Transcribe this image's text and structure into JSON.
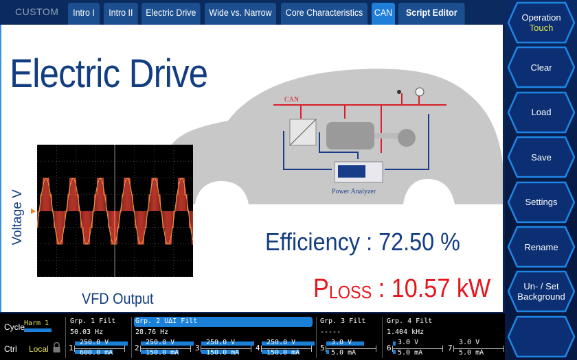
{
  "topbar": {
    "custom_label": "CUSTOM",
    "tabs": [
      {
        "label": "Intro I"
      },
      {
        "label": "Intro II"
      },
      {
        "label": "Electric Drive"
      },
      {
        "label": "Wide vs. Narrow"
      },
      {
        "label": "Core Characteristics"
      },
      {
        "label": "CAN",
        "active": true
      },
      {
        "label": "Script Editor"
      }
    ]
  },
  "main": {
    "title": "Electric Drive",
    "scope_ylabel": "Voltage V",
    "scope_caption": "VFD Output",
    "diagram": {
      "bus_label": "CAN",
      "analyzer_label": "Power Analyzer"
    },
    "efficiency_label": "Efficiency : 72.50 %",
    "ploss_p": "P",
    "ploss_sub": "LOSS",
    "ploss_value": " : 10.57 kW"
  },
  "side": {
    "buttons": [
      {
        "label": "Operation",
        "sub": "Touch"
      },
      {
        "label": "Clear"
      },
      {
        "label": "Load"
      },
      {
        "label": "Save"
      },
      {
        "label": "Settings"
      },
      {
        "label": "Rename"
      },
      {
        "label": "Un- / Set",
        "label2": "Background"
      },
      {
        "label": ""
      }
    ]
  },
  "status": {
    "cycle_label": "Cycle",
    "cycle_value": "Harm 1",
    "ctrl_label": "Ctrl",
    "ctrl_value": "Local",
    "groups": [
      {
        "title": "Grp. 1",
        "mode": "Filt",
        "freq": "50.03  Hz"
      },
      {
        "title": "Grp. 2",
        "sym": "U∆I",
        "mode": "Filt",
        "freq": "28.76  Hz"
      },
      {
        "title": "Grp. 3",
        "mode": "Filt",
        "freq": "-----"
      },
      {
        "title": "Grp. 4",
        "mode": "Filt",
        "freq": "1.404 kHz"
      }
    ],
    "channels": [
      {
        "num": "1",
        "v": "250.0 V",
        "a": "600.0 mA"
      },
      {
        "num": "2",
        "v": "250.0 V",
        "a": "150.0 mA"
      },
      {
        "num": "3",
        "v": "250.0 V",
        "a": "150.0 mA"
      },
      {
        "num": "4",
        "v": "250.0 V",
        "a": "150.0 mA"
      },
      {
        "num": "5",
        "v": "3.0 V",
        "a": "5.0 mA"
      },
      {
        "num": "6",
        "v": "3.0 V",
        "a": "5.0 mA"
      },
      {
        "num": "7",
        "v": "3.0 V",
        "a": "5.0 mA"
      }
    ]
  },
  "colors": {
    "accent": "#1f7fd8",
    "navy": "#0b2a5e",
    "title": "#123d80",
    "loss": "#e8141c",
    "wave": "#ff4a3a"
  }
}
